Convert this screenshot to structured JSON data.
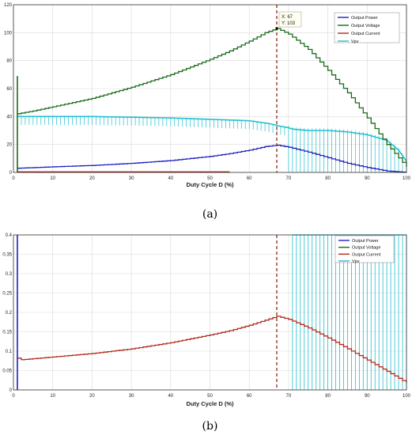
{
  "chart_data": [
    {
      "id": "a",
      "type": "line",
      "panel_label": "(a)",
      "xlabel": "Duty Cycle D (%)",
      "ylabel": "",
      "xlim": [
        0,
        100
      ],
      "ylim": [
        0,
        120
      ],
      "xticks": [
        0,
        10,
        20,
        30,
        40,
        50,
        60,
        70,
        80,
        90,
        100
      ],
      "yticks": [
        0,
        20,
        40,
        60,
        80,
        100,
        120
      ],
      "grid": true,
      "legend_position": "top-right",
      "legend": [
        {
          "label": "Output Power",
          "color": "#1f1fbf"
        },
        {
          "label": "Output Voltage",
          "color": "#1a6b1a"
        },
        {
          "label": "Output Current",
          "color": "#b02a1a"
        },
        {
          "label": "Vpv",
          "color": "#20c0d0"
        }
      ],
      "datatip": {
        "x_text": "X: 67",
        "y_text": "Y: 103",
        "x": 67,
        "y": 103
      },
      "marker_line_x": 67,
      "series": [
        {
          "name": "Output Voltage",
          "color": "#1a6b1a",
          "x": [
            1,
            5,
            10,
            20,
            30,
            40,
            50,
            55,
            60,
            64,
            67,
            70,
            75,
            80,
            85,
            90,
            95,
            100
          ],
          "y": [
            42,
            44,
            47,
            53,
            61,
            70,
            81,
            87,
            94,
            100,
            103,
            99,
            88,
            73,
            57,
            39,
            20,
            4
          ]
        },
        {
          "name": "Vpv",
          "color": "#20c0d0",
          "x": [
            1,
            10,
            20,
            30,
            40,
            50,
            55,
            60,
            65,
            68,
            70,
            71,
            75,
            80,
            85,
            90,
            95,
            98,
            100
          ],
          "y": [
            40,
            40,
            40,
            39.5,
            39,
            38,
            37.5,
            37,
            35,
            33,
            32,
            31,
            30,
            30,
            29,
            27,
            23,
            16,
            8
          ]
        },
        {
          "name": "Output Power",
          "color": "#1f1fbf",
          "x": [
            1,
            10,
            20,
            30,
            40,
            50,
            55,
            60,
            64,
            67,
            70,
            75,
            80,
            85,
            90,
            95,
            100
          ],
          "y": [
            3,
            4,
            5,
            6.5,
            8.5,
            11.5,
            13.5,
            16,
            18.5,
            19.5,
            18,
            14.5,
            10.5,
            6.5,
            3.5,
            1,
            0
          ]
        },
        {
          "name": "Output Current",
          "color": "#b02a1a",
          "x": [
            1,
            55
          ],
          "y": [
            0.3,
            0.3
          ]
        }
      ],
      "vpv_ripple_x_start": 0,
      "vpv_ripple_x_split": 70,
      "startup_spikes": [
        {
          "x": 1,
          "y": 69,
          "color": "#1a6b1a"
        }
      ]
    },
    {
      "id": "b",
      "type": "line",
      "panel_label": "(b)",
      "xlabel": "Duty Cycle D (%)",
      "ylabel": "",
      "xlim": [
        0,
        100
      ],
      "ylim": [
        0,
        0.4
      ],
      "xticks": [
        0,
        10,
        20,
        30,
        40,
        50,
        60,
        70,
        80,
        90,
        100
      ],
      "yticks": [
        0,
        0.05,
        0.1,
        0.15,
        0.2,
        0.25,
        0.3,
        0.35,
        0.4
      ],
      "grid": true,
      "legend_position": "top-right",
      "legend": [
        {
          "label": "Output Power",
          "color": "#1f1fbf"
        },
        {
          "label": "Output Voltage",
          "color": "#1a6b1a"
        },
        {
          "label": "Output Current",
          "color": "#b02a1a"
        },
        {
          "label": "Vpv",
          "color": "#20c0d0"
        }
      ],
      "marker_line_x": 67,
      "series": [
        {
          "name": "Output Current",
          "color": "#b02a1a",
          "x": [
            1,
            2,
            10,
            20,
            30,
            40,
            50,
            55,
            60,
            64,
            67,
            70,
            75,
            80,
            85,
            90,
            95,
            100
          ],
          "y": [
            0.082,
            0.078,
            0.085,
            0.094,
            0.106,
            0.122,
            0.142,
            0.153,
            0.167,
            0.18,
            0.19,
            0.182,
            0.16,
            0.134,
            0.106,
            0.077,
            0.048,
            0.018
          ]
        }
      ],
      "vpv_ripple_x_start": 71,
      "startup_spikes": [
        {
          "x": 1,
          "y": 0.4,
          "color": "#1f1fbf"
        }
      ]
    }
  ]
}
